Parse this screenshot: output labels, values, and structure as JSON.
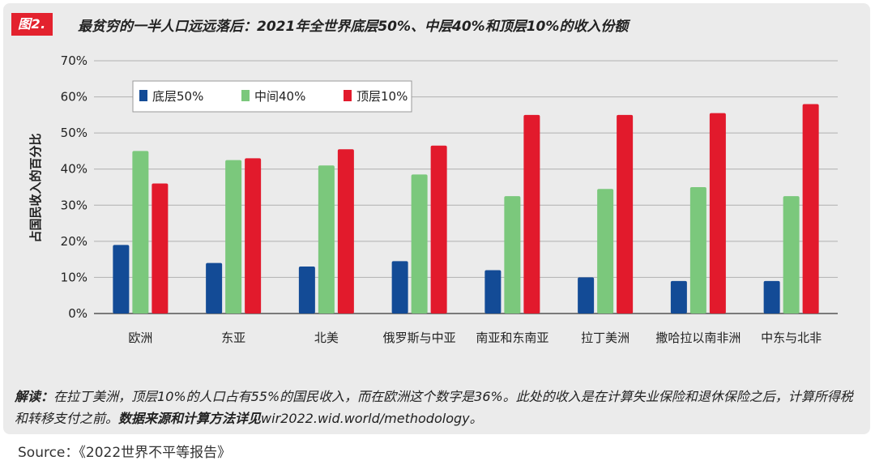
{
  "figure": {
    "badge": "图2.",
    "title": "最贫穷的一半人口远远落后：2021年全世界底层50%、中层40%和顶层10%的收入份额"
  },
  "note": {
    "lead": "解读：",
    "text": "在拉丁美洲，顶层10%的人口占有55%的国民收入，而在欧洲这个数字是36%。此处的收入是在计算失业保险和退休保险之后，计算所得税和转移支付之前。",
    "emphasis": "数据来源和计算方法详见",
    "url": "wir2022.wid.world/methodology。"
  },
  "source": "Source：《2022世界不平等报告》",
  "chart_data": {
    "type": "bar",
    "title": "最贫穷的一半人口远远落后：2021年全世界底层50%、中层40%和顶层10%的收入份额",
    "xlabel": "",
    "ylabel": "占国民收入的百分比",
    "ylim": [
      0,
      70
    ],
    "yticks": [
      "0%",
      "10%",
      "20%",
      "30%",
      "40%",
      "50%",
      "60%",
      "70%"
    ],
    "grid": true,
    "legend_position": "top-left",
    "categories": [
      "欧洲",
      "东亚",
      "北美",
      "俄罗斯与中亚",
      "南亚和东南亚",
      "拉丁美洲",
      "撒哈拉以南非洲",
      "中东与北非"
    ],
    "series": [
      {
        "name": "底层50%",
        "color": "#134b96",
        "values": [
          19,
          14,
          13,
          14.5,
          12,
          10,
          9,
          9
        ]
      },
      {
        "name": "中间40%",
        "color": "#7bc87c",
        "values": [
          45,
          42.5,
          41,
          38.5,
          32.5,
          34.5,
          35,
          32.5
        ]
      },
      {
        "name": "顶层10%",
        "color": "#e21a2c",
        "values": [
          36,
          43,
          45.5,
          46.5,
          55,
          55,
          55.5,
          58
        ]
      }
    ]
  }
}
